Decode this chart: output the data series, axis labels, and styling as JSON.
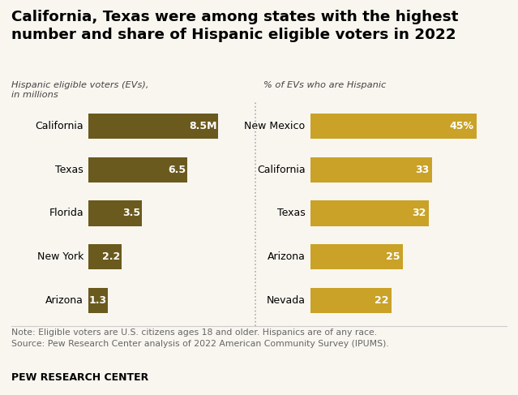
{
  "title": "California, Texas were among states with the highest\nnumber and share of Hispanic eligible voters in 2022",
  "left_subtitle": "Hispanic eligible voters (EVs),\nin millions",
  "right_subtitle": "% of EVs who are Hispanic",
  "left_categories": [
    "California",
    "Texas",
    "Florida",
    "New York",
    "Arizona"
  ],
  "left_values": [
    8.5,
    6.5,
    3.5,
    2.2,
    1.3
  ],
  "left_labels": [
    "8.5M",
    "6.5",
    "3.5",
    "2.2",
    "1.3"
  ],
  "left_color": "#6b5a1e",
  "right_categories": [
    "New Mexico",
    "California",
    "Texas",
    "Arizona",
    "Nevada"
  ],
  "right_values": [
    45,
    33,
    32,
    25,
    22
  ],
  "right_labels": [
    "45%",
    "33",
    "32",
    "25",
    "22"
  ],
  "right_color": "#c9a227",
  "note": "Note: Eligible voters are U.S. citizens ages 18 and older. Hispanics are of any race.\nSource: Pew Research Center analysis of 2022 American Community Survey (IPUMS).",
  "footer": "PEW RESEARCH CENTER",
  "bg_color": "#f9f6f0",
  "note_color": "#666666",
  "bar_label_color": "#ffffff"
}
